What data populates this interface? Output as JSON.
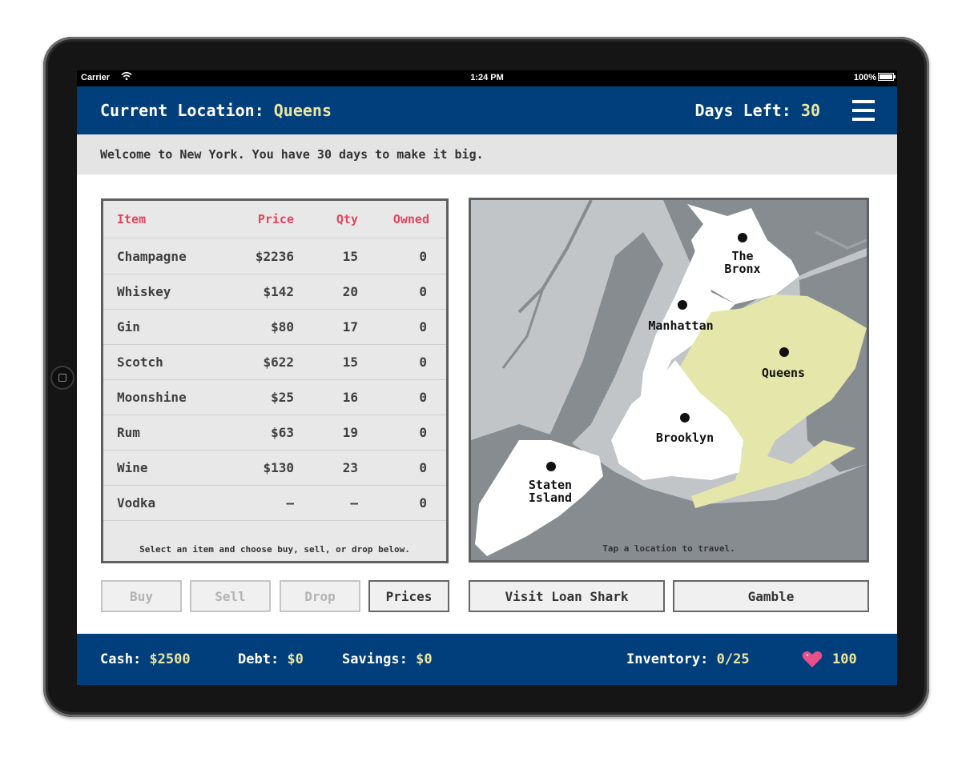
{
  "status_bar": {
    "carrier": "Carrier",
    "time": "1:24 PM",
    "battery": "100%"
  },
  "header": {
    "location_label": "Current Location:",
    "location_value": "Queens",
    "days_label": "Days Left:",
    "days_value": "30",
    "menu_icon": "hamburger-menu-icon"
  },
  "message": "Welcome to New York. You have 30 days to make it big.",
  "market": {
    "columns": [
      "Item",
      "Price",
      "Qty",
      "Owned"
    ],
    "rows": [
      {
        "item": "Champagne",
        "price": "$2236",
        "qty": "15",
        "owned": "0"
      },
      {
        "item": "Whiskey",
        "price": "$142",
        "qty": "20",
        "owned": "0"
      },
      {
        "item": "Gin",
        "price": "$80",
        "qty": "17",
        "owned": "0"
      },
      {
        "item": "Scotch",
        "price": "$622",
        "qty": "15",
        "owned": "0"
      },
      {
        "item": "Moonshine",
        "price": "$25",
        "qty": "16",
        "owned": "0"
      },
      {
        "item": "Rum",
        "price": "$63",
        "qty": "19",
        "owned": "0"
      },
      {
        "item": "Wine",
        "price": "$130",
        "qty": "23",
        "owned": "0"
      },
      {
        "item": "Vodka",
        "price": "–",
        "qty": "–",
        "owned": "0"
      }
    ],
    "footer": "Select an item and choose buy, sell, or drop below."
  },
  "map": {
    "boroughs": {
      "bronx": [
        "The",
        "Bronx"
      ],
      "manhattan": "Manhattan",
      "queens": "Queens",
      "brooklyn": "Brooklyn",
      "staten_island": [
        "Staten",
        "Island"
      ]
    },
    "hint": "Tap a location to travel.",
    "colors": {
      "water": "#c2c5c8",
      "land_other": "#878c91",
      "borough": "#ffffff",
      "current": "#e5e6a9"
    }
  },
  "actions": {
    "buy": "Buy",
    "sell": "Sell",
    "drop": "Drop",
    "prices": "Prices",
    "loan_shark": "Visit Loan Shark",
    "gamble": "Gamble"
  },
  "footer": {
    "cash_label": "Cash:",
    "cash_value": "$2500",
    "debt_label": "Debt:",
    "debt_value": "$0",
    "savings_label": "Savings:",
    "savings_value": "$0",
    "inventory_label": "Inventory:",
    "inventory_value": "0/25",
    "health_value": "100",
    "health_icon": "heart-icon"
  },
  "colors": {
    "bar_blue": "#013f7c",
    "accent_yellow": "#ece7a0",
    "header_red": "#e2455d",
    "heart_pink": "#e8508a"
  }
}
